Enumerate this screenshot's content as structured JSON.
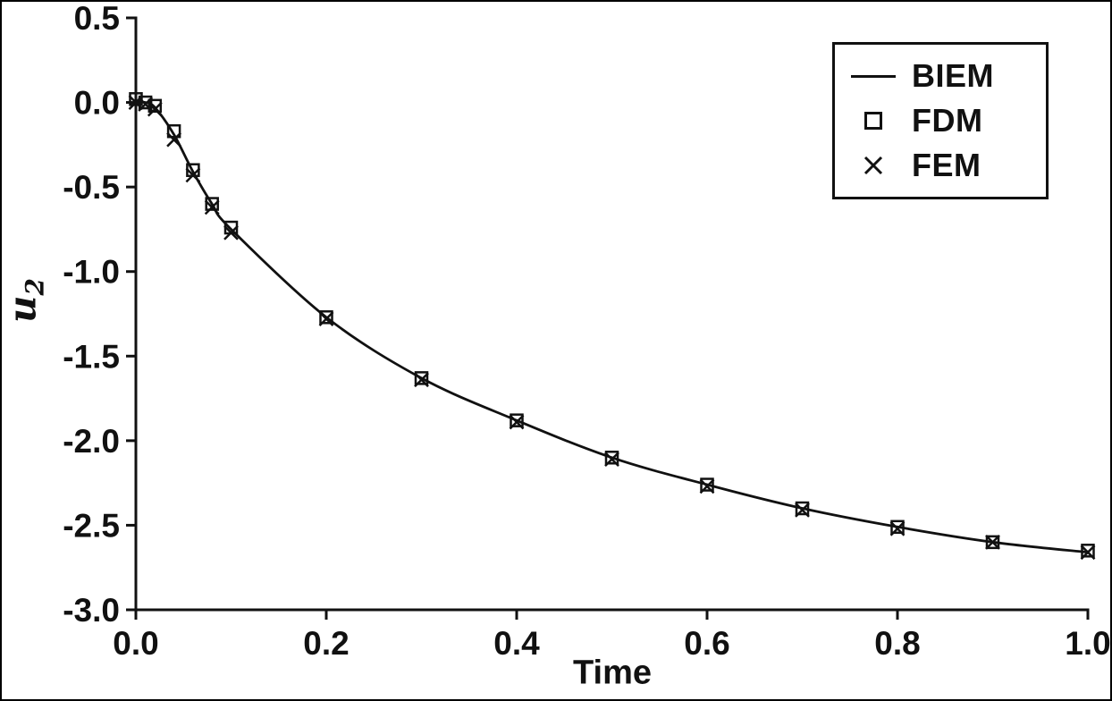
{
  "chart_data": {
    "type": "line",
    "title": "",
    "xlabel": "Time",
    "ylabel": "u_2",
    "ylabel_base": "u",
    "ylabel_sub": "2",
    "xlim": [
      0.0,
      1.0
    ],
    "ylim": [
      -3.0,
      0.5
    ],
    "grid": false,
    "legend_position": "top-right",
    "ink_color": "#111111",
    "xticks": [
      0.0,
      0.2,
      0.4,
      0.6,
      0.8,
      1.0
    ],
    "xtick_labels": [
      "0.0",
      "0.2",
      "0.4",
      "0.6",
      "0.8",
      "1.0"
    ],
    "yticks": [
      0.5,
      0.0,
      -0.5,
      -1.0,
      -1.5,
      -2.0,
      -2.5,
      -3.0
    ],
    "ytick_labels": [
      "0.5",
      "0.0",
      "-0.5",
      "-1.0",
      "-1.5",
      "-2.0",
      "-2.5",
      "-3.0"
    ],
    "x": [
      0.0,
      0.01,
      0.02,
      0.04,
      0.06,
      0.08,
      0.1,
      0.2,
      0.3,
      0.4,
      0.5,
      0.6,
      0.7,
      0.8,
      0.9,
      1.0
    ],
    "series": [
      {
        "name": "BIEM",
        "type": "line",
        "marker": "none",
        "values": [
          0.0,
          0.0,
          -0.03,
          -0.19,
          -0.41,
          -0.6,
          -0.75,
          -1.27,
          -1.63,
          -1.88,
          -2.1,
          -2.26,
          -2.4,
          -2.51,
          -2.6,
          -2.66
        ]
      },
      {
        "name": "FDM",
        "type": "scatter",
        "marker": "square",
        "values": [
          0.02,
          0.0,
          -0.02,
          -0.17,
          -0.4,
          -0.6,
          -0.74,
          -1.27,
          -1.63,
          -1.88,
          -2.1,
          -2.26,
          -2.4,
          -2.51,
          -2.6,
          -2.65
        ]
      },
      {
        "name": "FEM",
        "type": "scatter",
        "marker": "x",
        "values": [
          0.0,
          -0.01,
          -0.04,
          -0.22,
          -0.43,
          -0.62,
          -0.77,
          -1.28,
          -1.64,
          -1.89,
          -2.11,
          -2.27,
          -2.41,
          -2.52,
          -2.6,
          -2.66
        ]
      }
    ]
  }
}
